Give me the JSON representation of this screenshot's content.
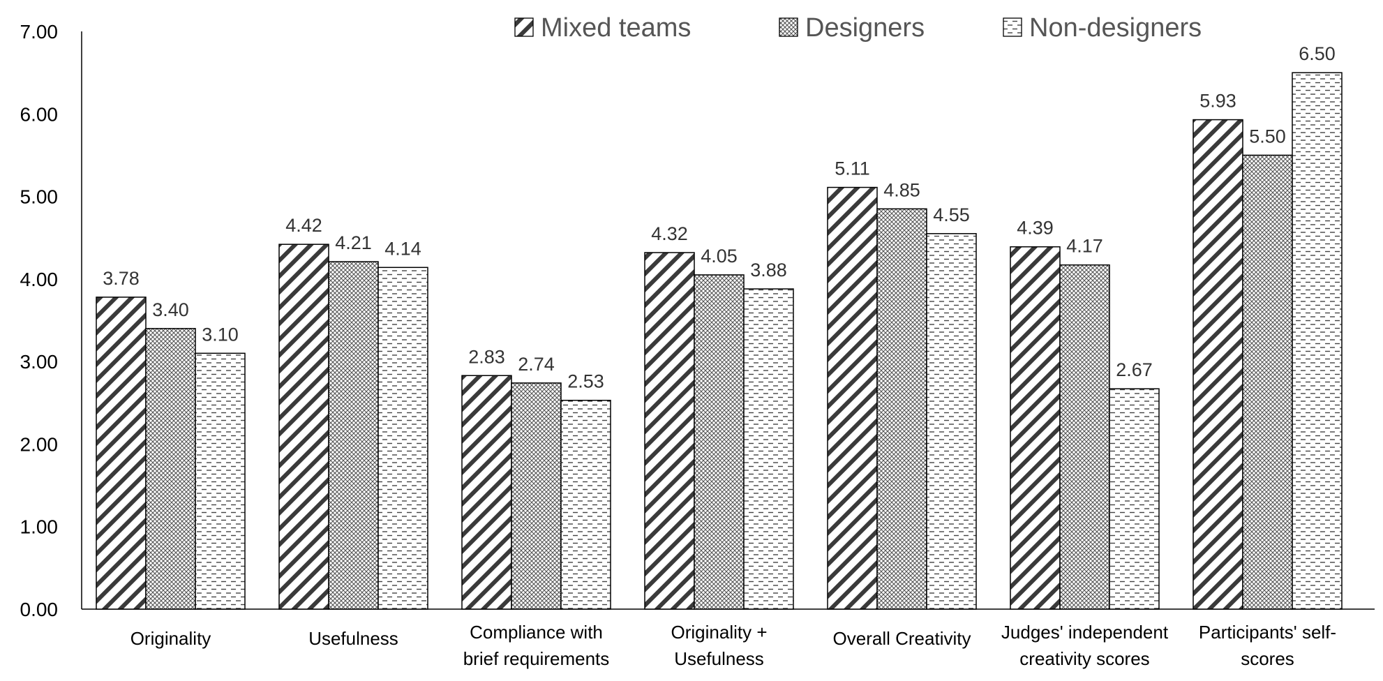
{
  "chart_data": {
    "type": "bar",
    "title": "",
    "xlabel": "",
    "ylabel": "",
    "ylim": [
      0,
      7
    ],
    "yticks": [
      "0.00",
      "1.00",
      "2.00",
      "3.00",
      "4.00",
      "5.00",
      "6.00",
      "7.00"
    ],
    "grid": false,
    "legend_position": "top",
    "categories": [
      [
        "Originality"
      ],
      [
        "Usefulness"
      ],
      [
        "Compliance with",
        "brief requirements"
      ],
      [
        "Originality +",
        "Usefulness"
      ],
      [
        "Overall Creativity"
      ],
      [
        "Judges' independent",
        "creativity scores"
      ],
      [
        "Participants' self-",
        "scores"
      ]
    ],
    "series": [
      {
        "name": "Mixed teams",
        "pattern": "diagonal-hatch",
        "values": [
          3.78,
          4.42,
          2.83,
          4.32,
          5.11,
          4.39,
          5.93
        ],
        "labels": [
          "3.78",
          "4.42",
          "2.83",
          "4.32",
          "5.11",
          "4.39",
          "5.93"
        ]
      },
      {
        "name": "Designers",
        "pattern": "crosshatch",
        "values": [
          3.4,
          4.21,
          2.74,
          4.05,
          4.85,
          4.17,
          5.5
        ],
        "labels": [
          "3.40",
          "4.21",
          "2.74",
          "4.05",
          "4.85",
          "4.17",
          "5.50"
        ]
      },
      {
        "name": "Non-designers",
        "pattern": "dashed-horizontal",
        "values": [
          3.1,
          4.14,
          2.53,
          3.88,
          4.55,
          2.67,
          6.5
        ],
        "labels": [
          "3.10",
          "4.14",
          "2.53",
          "3.88",
          "4.55",
          "2.67",
          "6.50"
        ]
      }
    ],
    "colors": {
      "bar_stroke": "#000000",
      "bar_fill": "#ffffff",
      "hatch": "#333333",
      "label_text": "#333333",
      "legend_text": "#555555"
    }
  }
}
